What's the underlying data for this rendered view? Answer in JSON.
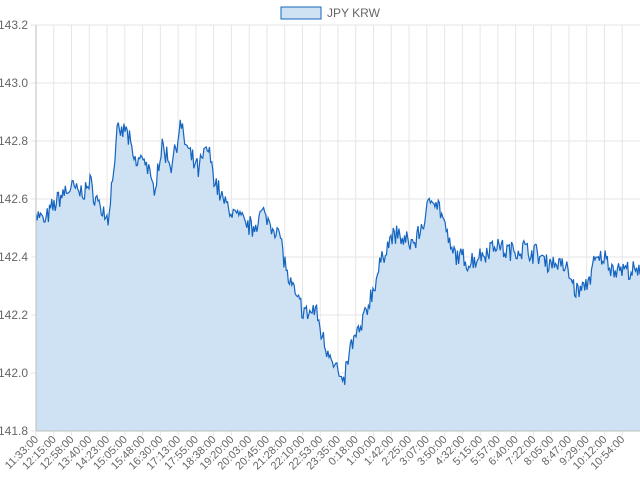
{
  "chart_data": {
    "type": "area",
    "legend": {
      "label": "JPY KRW",
      "position": "top-center"
    },
    "colors": {
      "line": "#1565c0",
      "fill": "#cfe2f3",
      "grid": "#e6e6e6",
      "text": "#666666"
    },
    "y_ticks": [
      "141.8",
      "142.0",
      "142.2",
      "142.4",
      "142.6",
      "142.8",
      "143.0",
      "143.2"
    ],
    "ylim": [
      141.8,
      143.2
    ],
    "x_ticks": [
      "11:33:00",
      "12:15:00",
      "12:58:00",
      "13:40:00",
      "14:23:00",
      "15:05:00",
      "15:48:00",
      "16:30:00",
      "17:13:00",
      "17:55:00",
      "18:38:00",
      "19:20:00",
      "20:03:00",
      "20:45:00",
      "21:28:00",
      "22:10:00",
      "22:53:00",
      "23:35:00",
      "0:18:00",
      "1:00:00",
      "1:42:00",
      "2:25:00",
      "3:07:00",
      "3:50:00",
      "4:32:00",
      "5:15:00",
      "5:57:00",
      "6:40:00",
      "7:22:00",
      "8:05:00",
      "8:47:00",
      "9:29:00",
      "10:12:00",
      "10:54:00"
    ],
    "grid": true,
    "series": [
      {
        "name": "JPY KRW",
        "x": [
          "11:33:00",
          "11:54:00",
          "12:15:00",
          "12:37:00",
          "12:58:00",
          "13:19:00",
          "13:40:00",
          "14:02:00",
          "14:23:00",
          "14:44:00",
          "15:05:00",
          "15:27:00",
          "15:48:00",
          "16:09:00",
          "16:30:00",
          "16:52:00",
          "17:13:00",
          "17:34:00",
          "17:55:00",
          "18:17:00",
          "18:38:00",
          "18:59:00",
          "19:20:00",
          "19:42:00",
          "20:03:00",
          "20:24:00",
          "20:45:00",
          "21:07:00",
          "21:28:00",
          "21:49:00",
          "22:10:00",
          "22:32:00",
          "22:53:00",
          "23:14:00",
          "23:35:00",
          "23:57:00",
          "0:18:00",
          "0:39:00",
          "1:00:00",
          "1:21:00",
          "1:42:00",
          "2:04:00",
          "2:25:00",
          "2:46:00",
          "3:07:00",
          "3:29:00",
          "3:50:00",
          "4:11:00",
          "4:32:00",
          "4:54:00",
          "5:15:00",
          "5:36:00",
          "5:57:00",
          "6:19:00",
          "6:40:00",
          "7:01:00",
          "7:22:00",
          "7:44:00",
          "8:05:00",
          "8:26:00",
          "8:47:00",
          "9:08:00",
          "9:29:00",
          "9:51:00",
          "10:12:00",
          "10:33:00",
          "10:54:00",
          "11:15:00"
        ],
        "values": [
          142.55,
          142.52,
          142.58,
          142.62,
          142.64,
          142.62,
          142.65,
          142.58,
          142.53,
          142.82,
          142.84,
          142.72,
          142.75,
          142.63,
          142.78,
          142.72,
          142.85,
          142.75,
          142.7,
          142.78,
          142.65,
          142.58,
          142.55,
          142.52,
          142.5,
          142.55,
          142.52,
          142.48,
          142.32,
          142.25,
          142.2,
          142.22,
          142.1,
          142.05,
          141.95,
          142.1,
          142.15,
          142.25,
          142.35,
          142.45,
          142.48,
          142.45,
          142.45,
          142.52,
          142.62,
          142.55,
          142.42,
          142.4,
          142.38,
          142.4,
          142.42,
          142.45,
          142.42,
          142.42,
          142.43,
          142.42,
          142.4,
          142.38,
          142.38,
          142.35,
          142.28,
          142.3,
          142.38,
          142.4,
          142.36,
          142.36,
          142.35,
          142.34
        ]
      }
    ]
  }
}
